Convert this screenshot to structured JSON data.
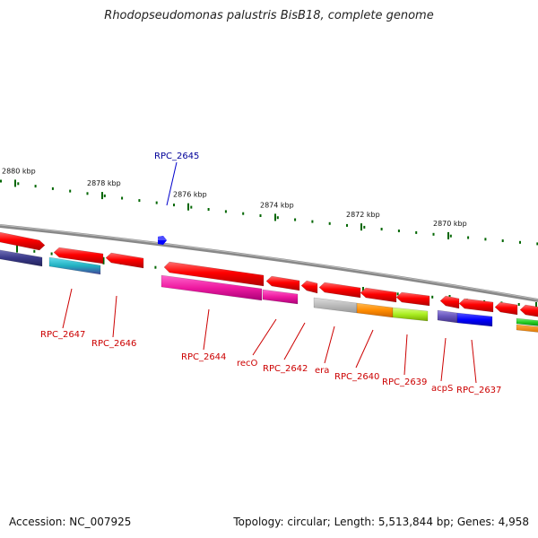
{
  "title": "Rhodopseudomonas palustris BisB18, complete genome",
  "accession": "Accession: NC_007925",
  "summary": "Topology: circular; Length: 5,513,844 bp; Genes: 4,958",
  "ruler_labels": [
    "2880 kbp",
    "2878 kbp",
    "2876 kbp",
    "2874 kbp",
    "2872 kbp",
    "2870 kbp"
  ],
  "highlighted_gene": "RPC_2645",
  "gene_labels": [
    "RPC_2647",
    "RPC_2646",
    "RPC_2644",
    "recO",
    "RPC_2642",
    "era",
    "RPC_2640",
    "RPC_2639",
    "acpS",
    "RPC_2637"
  ],
  "colors": {
    "gene_red": "#ff0000",
    "highlight_blue": "#0000ff",
    "label_red": "#cc0000",
    "label_blue": "#000099",
    "tick_green": "#006600",
    "backbone": "#888888"
  }
}
